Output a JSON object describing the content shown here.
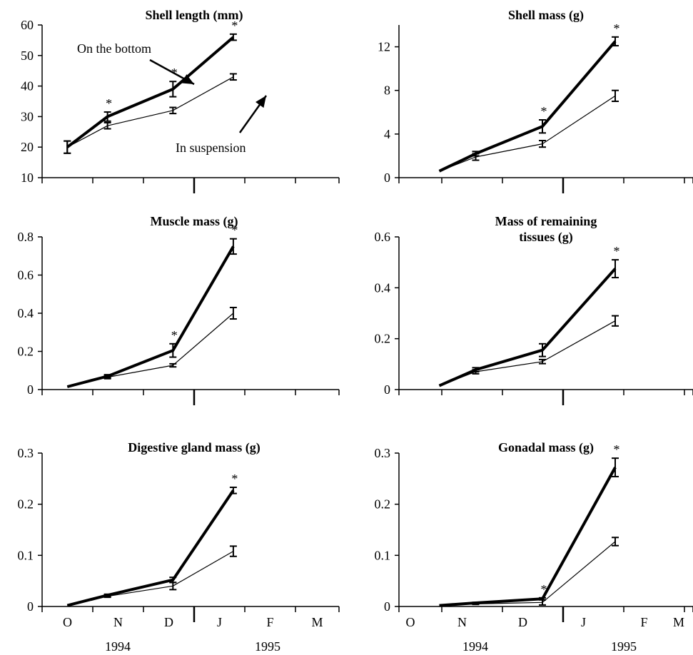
{
  "x_axis": {
    "months": [
      "O",
      "N",
      "D",
      "J",
      "F",
      "M"
    ],
    "years": [
      "1994",
      "1995"
    ]
  },
  "chart_data": [
    {
      "type": "line",
      "title_lines": [
        "Shell length (mm)"
      ],
      "ylim": [
        10,
        60
      ],
      "yticks": [
        10,
        20,
        30,
        40,
        50,
        60
      ],
      "ytick_labels": [
        "10",
        "20",
        "30",
        "40",
        "50",
        "60"
      ],
      "show_month_labels": false,
      "series": [
        {
          "name": "On the bottom",
          "x": [
            0.5,
            1.3,
            2.6,
            3.8
          ],
          "y": [
            20.0,
            30.0,
            39.0,
            56.0
          ],
          "err": [
            2.0,
            1.5,
            2.5,
            1.0
          ],
          "stroke": "#000000"
        },
        {
          "name": "In suspension",
          "x": [
            0.5,
            1.3,
            2.6,
            3.8
          ],
          "y": [
            20.0,
            27.0,
            32.0,
            43.0
          ],
          "err": [
            2.0,
            1.0,
            1.0,
            1.0
          ],
          "stroke": "#000000"
        }
      ],
      "stars": [
        {
          "x": 1.3,
          "y": 30.0,
          "err": 1.5
        },
        {
          "x": 2.6,
          "y": 39.0,
          "err": 2.5
        },
        {
          "x": 3.8,
          "y": 56.0,
          "err": 1.0
        }
      ],
      "annotations": [
        "On the bottom",
        "In suspension"
      ]
    },
    {
      "type": "line",
      "title_lines": [
        "Shell mass (g)"
      ],
      "ylim": [
        0,
        14
      ],
      "yticks": [
        0,
        4,
        8,
        12
      ],
      "ytick_labels": [
        "0",
        "4",
        "8",
        "12"
      ],
      "show_month_labels": false,
      "series": [
        {
          "name": "On the bottom",
          "x": [
            0.1,
            0.7,
            1.8,
            3.0
          ],
          "y": [
            0.6,
            2.2,
            4.7,
            12.5
          ],
          "err": [
            0.0,
            0.2,
            0.6,
            0.4
          ]
        },
        {
          "name": "In suspension",
          "x": [
            0.1,
            0.7,
            1.8,
            3.0
          ],
          "y": [
            0.6,
            1.9,
            3.1,
            7.5
          ],
          "err": [
            0.0,
            0.3,
            0.3,
            0.5
          ]
        }
      ],
      "stars": [
        {
          "x": 1.8,
          "y": 4.7,
          "err": 0.6
        },
        {
          "x": 3.0,
          "y": 12.5,
          "err": 0.4
        }
      ],
      "annotations": []
    },
    {
      "type": "line",
      "title_lines": [
        "Muscle mass (g)"
      ],
      "ylim": [
        0,
        0.8
      ],
      "yticks": [
        0,
        0.2,
        0.4,
        0.6,
        0.8
      ],
      "ytick_labels": [
        "0",
        "0.2",
        "0.4",
        "0.6",
        "0.8"
      ],
      "show_month_labels": false,
      "series": [
        {
          "name": "On the bottom",
          "x": [
            0.5,
            1.3,
            2.6,
            3.8
          ],
          "y": [
            0.015,
            0.07,
            0.205,
            0.75
          ],
          "err": [
            0.0,
            0.008,
            0.035,
            0.04
          ]
        },
        {
          "name": "In suspension",
          "x": [
            0.5,
            1.3,
            2.6,
            3.8
          ],
          "y": [
            0.015,
            0.065,
            0.127,
            0.4
          ],
          "err": [
            0.0,
            0.008,
            0.008,
            0.03
          ]
        }
      ],
      "stars": [
        {
          "x": 2.6,
          "y": 0.205,
          "err": 0.035
        },
        {
          "x": 3.8,
          "y": 0.75,
          "err": 0.04
        }
      ],
      "annotations": []
    },
    {
      "type": "line",
      "title_lines": [
        "Mass of remaining",
        "tissues (g)"
      ],
      "ylim": [
        0,
        0.6
      ],
      "yticks": [
        0,
        0.2,
        0.4,
        0.6
      ],
      "ytick_labels": [
        "0",
        "0.2",
        "0.4",
        "0.6"
      ],
      "show_month_labels": false,
      "series": [
        {
          "name": "On the bottom",
          "x": [
            0.1,
            0.7,
            1.8,
            3.0
          ],
          "y": [
            0.015,
            0.078,
            0.155,
            0.475
          ],
          "err": [
            0.0,
            0.008,
            0.025,
            0.035
          ]
        },
        {
          "name": "In suspension",
          "x": [
            0.1,
            0.7,
            1.8,
            3.0
          ],
          "y": [
            0.015,
            0.07,
            0.11,
            0.27
          ],
          "err": [
            0.0,
            0.008,
            0.008,
            0.02
          ]
        }
      ],
      "stars": [
        {
          "x": 3.0,
          "y": 0.475,
          "err": 0.035
        }
      ],
      "annotations": []
    },
    {
      "type": "line",
      "title_lines": [
        "Digestive gland mass (g)"
      ],
      "ylim": [
        0,
        0.3
      ],
      "yticks": [
        0,
        0.1,
        0.2,
        0.3
      ],
      "ytick_labels": [
        "0",
        "0.1",
        "0.2",
        "0.3"
      ],
      "show_month_labels": true,
      "series": [
        {
          "name": "On the bottom",
          "x": [
            0.5,
            1.3,
            2.6,
            3.8
          ],
          "y": [
            0.002,
            0.022,
            0.052,
            0.227
          ],
          "err": [
            0.0,
            0.002,
            0.005,
            0.006
          ]
        },
        {
          "name": "In suspension",
          "x": [
            0.5,
            1.3,
            2.6,
            3.8
          ],
          "y": [
            0.002,
            0.02,
            0.04,
            0.108
          ],
          "err": [
            0.0,
            0.002,
            0.007,
            0.01
          ]
        }
      ],
      "stars": [
        {
          "x": 3.8,
          "y": 0.227,
          "err": 0.006
        }
      ],
      "annotations": []
    },
    {
      "type": "line",
      "title_lines": [
        "Gonadal mass (g)"
      ],
      "ylim": [
        0,
        0.3
      ],
      "yticks": [
        0,
        0.1,
        0.2,
        0.3
      ],
      "ytick_labels": [
        "0",
        "0.1",
        "0.2",
        "0.3"
      ],
      "show_month_labels": true,
      "series": [
        {
          "name": "On the bottom",
          "x": [
            0.1,
            0.7,
            1.8,
            3.0
          ],
          "y": [
            0.002,
            0.007,
            0.015,
            0.272
          ],
          "err": [
            0.0,
            0.001,
            0.002,
            0.018
          ]
        },
        {
          "name": "In suspension",
          "x": [
            0.1,
            0.7,
            1.8,
            3.0
          ],
          "y": [
            0.002,
            0.005,
            0.008,
            0.127
          ],
          "err": [
            0.0,
            0.001,
            0.005,
            0.008
          ]
        }
      ],
      "stars": [
        {
          "x": 1.8,
          "y": 0.015,
          "err": 0.002
        },
        {
          "x": 3.0,
          "y": 0.272,
          "err": 0.018
        }
      ],
      "annotations": []
    }
  ]
}
